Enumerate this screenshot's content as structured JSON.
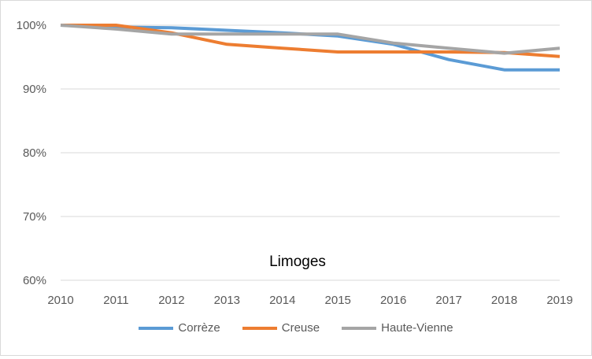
{
  "chart_data": {
    "type": "line",
    "title": "",
    "annotation": "Limoges",
    "xlabel": "",
    "ylabel": "",
    "x": [
      "2010",
      "2011",
      "2012",
      "2013",
      "2014",
      "2015",
      "2016",
      "2017",
      "2018",
      "2019"
    ],
    "ylim": [
      60,
      100
    ],
    "yticks": [
      60,
      70,
      80,
      90,
      100
    ],
    "ytick_labels": [
      "60%",
      "70%",
      "80%",
      "90%",
      "100%"
    ],
    "grid": true,
    "legend_position": "bottom",
    "series": [
      {
        "name": "Corrèze",
        "color": "#5b9bd5",
        "values": [
          100,
          99.7,
          99.6,
          99.2,
          98.8,
          98.3,
          97.0,
          94.6,
          93.0,
          93.0
        ]
      },
      {
        "name": "Creuse",
        "color": "#ed7d31",
        "values": [
          100,
          100,
          98.8,
          97.0,
          96.4,
          95.8,
          95.8,
          95.8,
          95.7,
          95.1
        ]
      },
      {
        "name": "Haute-Vienne",
        "color": "#a5a5a5",
        "values": [
          100,
          99.4,
          98.6,
          98.6,
          98.6,
          98.6,
          97.2,
          96.4,
          95.6,
          96.4
        ]
      }
    ]
  }
}
